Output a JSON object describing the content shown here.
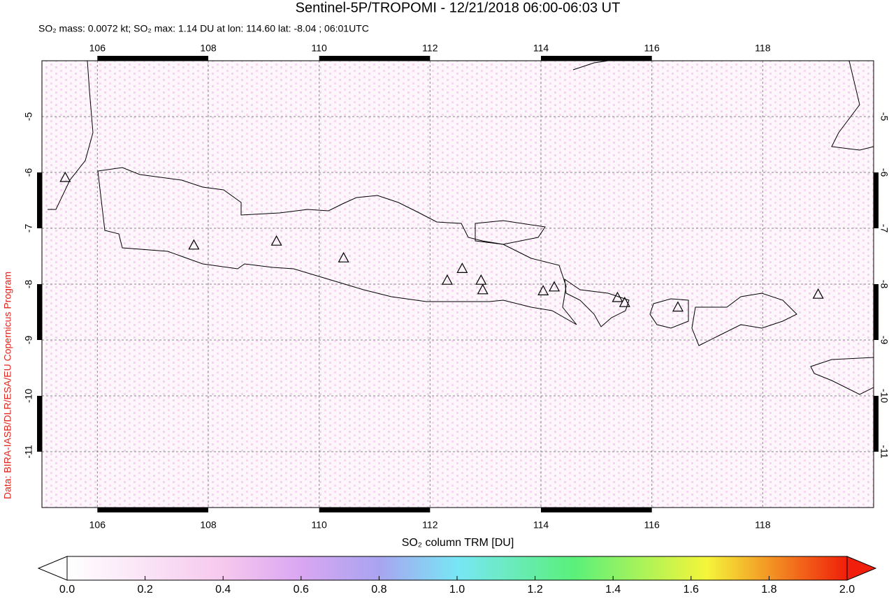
{
  "chart_data": {
    "type": "map",
    "title": "Sentinel-5P/TROPOMI - 12/21/2018 06:00-06:03 UT",
    "subtitle": "SO₂ mass: 0.0072 kt; SO₂ max: 1.14 DU at lon: 114.60 lat: -8.04 ; 06:01UTC",
    "credit": "Data: BIRA-IASB/DLR/ESA/EU Copernicus Program",
    "xlim": [
      105,
      120
    ],
    "ylim": [
      -12,
      -4
    ],
    "xticks": [
      106,
      108,
      110,
      112,
      114,
      116,
      118
    ],
    "yticks": [
      -5,
      -6,
      -7,
      -8,
      -9,
      -10,
      -11
    ],
    "grid": true,
    "markers": {
      "lon": [
        105.42,
        107.74,
        109.23,
        110.44,
        112.31,
        112.58,
        112.92,
        112.95,
        114.04,
        114.24,
        115.38,
        115.51,
        116.47,
        119.0
      ],
      "lat": [
        -6.1,
        -7.31,
        -7.24,
        -7.54,
        -7.94,
        -7.73,
        -7.94,
        -8.11,
        -8.13,
        -8.06,
        -8.25,
        -8.34,
        -8.42,
        -8.19
      ]
    },
    "colorbar": {
      "label": "SO₂ column TRM [DU]",
      "lim": [
        0,
        2
      ],
      "ticks": [
        {
          "value": 0,
          "label": "0.0"
        },
        0.2,
        0.4,
        0.6,
        0.8,
        {
          "value": 1,
          "label": "1.0"
        },
        1.2,
        1.4,
        1.6,
        1.8,
        {
          "value": 2,
          "label": "2.0"
        }
      ]
    }
  }
}
